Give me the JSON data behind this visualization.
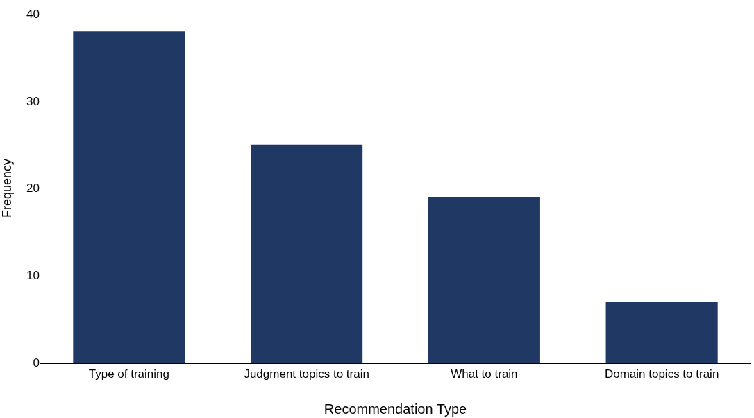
{
  "chart_data": {
    "type": "bar",
    "xlabel": "Recommendation Type",
    "ylabel": "Frequency",
    "categories": [
      "Type of training",
      "Judgment topics to train",
      "What to train",
      "Domain topics to train"
    ],
    "values": [
      38,
      25,
      19,
      7
    ],
    "color": "#203864",
    "ylim": [
      0,
      40
    ],
    "yticks": [
      0,
      10,
      20,
      30,
      40
    ],
    "grid": false,
    "legend": false
  }
}
